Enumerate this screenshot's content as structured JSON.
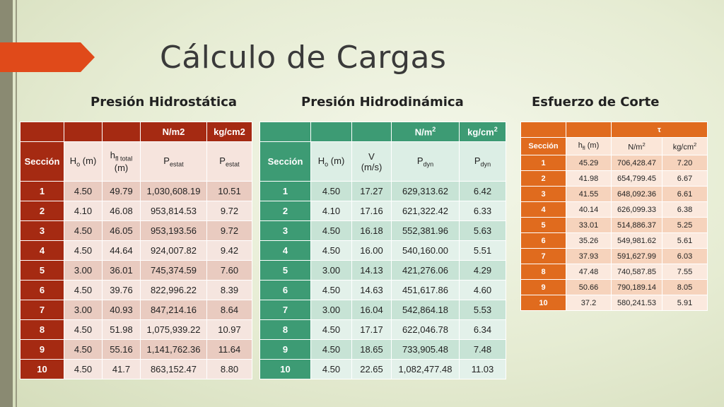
{
  "slide": {
    "title": "Cálculo de Cargas",
    "colors": {
      "red": "#a52a12",
      "green": "#3d9b74",
      "orange": "#e06b1e"
    }
  },
  "hydrostatic": {
    "subtitle": "Presión Hidrostática",
    "unit_n": "N/m2",
    "unit_kg": "kg/cm2",
    "col_seccion": "Sección",
    "col_h_main": "H",
    "col_h_sub": "o",
    "col_h_unit": " (m)",
    "col_hfl_main": "h",
    "col_hfl_sub": "fl total",
    "col_hfl_unit": "(m)",
    "col_p_main": "P",
    "col_p_sub": "estat",
    "rows": [
      [
        "1",
        "4.50",
        "49.79",
        "1,030,608.19",
        "10.51"
      ],
      [
        "2",
        "4.10",
        "46.08",
        "953,814.53",
        "9.72"
      ],
      [
        "3",
        "4.50",
        "46.05",
        "953,193.56",
        "9.72"
      ],
      [
        "4",
        "4.50",
        "44.64",
        "924,007.82",
        "9.42"
      ],
      [
        "5",
        "3.00",
        "36.01",
        "745,374.59",
        "7.60"
      ],
      [
        "6",
        "4.50",
        "39.76",
        "822,996.22",
        "8.39"
      ],
      [
        "7",
        "3.00",
        "40.93",
        "847,214.16",
        "8.64"
      ],
      [
        "8",
        "4.50",
        "51.98",
        "1,075,939.22",
        "10.97"
      ],
      [
        "9",
        "4.50",
        "55.16",
        "1,141,762.36",
        "11.64"
      ],
      [
        "10",
        "4.50",
        "41.7",
        "863,152.47",
        "8.80"
      ]
    ]
  },
  "hydrodynamic": {
    "subtitle": "Presión Hidrodinámica",
    "unit_n": "N/m",
    "unit_kg": "kg/cm",
    "unit_sup": "2",
    "col_seccion": "Sección",
    "col_h_main": "H",
    "col_h_sub": "o",
    "col_h_unit": " (m)",
    "col_v_main": "V",
    "col_v_unit": "(m/s)",
    "col_p_main": "P",
    "col_p_sub": "dyn",
    "rows": [
      [
        "1",
        "4.50",
        "17.27",
        "629,313.62",
        "6.42"
      ],
      [
        "2",
        "4.10",
        "17.16",
        "621,322.42",
        "6.33"
      ],
      [
        "3",
        "4.50",
        "16.18",
        "552,381.96",
        "5.63"
      ],
      [
        "4",
        "4.50",
        "16.00",
        "540,160.00",
        "5.51"
      ],
      [
        "5",
        "3.00",
        "14.13",
        "421,276.06",
        "4.29"
      ],
      [
        "6",
        "4.50",
        "14.63",
        "451,617.86",
        "4.60"
      ],
      [
        "7",
        "3.00",
        "16.04",
        "542,864.18",
        "5.53"
      ],
      [
        "8",
        "4.50",
        "17.17",
        "622,046.78",
        "6.34"
      ],
      [
        "9",
        "4.50",
        "18.65",
        "733,905.48",
        "7.48"
      ],
      [
        "10",
        "4.50",
        "22.65",
        "1,082,477.48",
        "11.03"
      ]
    ]
  },
  "shear": {
    "subtitle": "Esfuerzo de Corte",
    "tau": "τ",
    "col_seccion": "Sección",
    "col_hfl_main": "h",
    "col_hfl_sub": "fl",
    "col_hfl_unit": " (m)",
    "unit_n": "N/m",
    "unit_kg": "kg/cm",
    "unit_sup": "2",
    "rows": [
      [
        "1",
        "45.29",
        "706,428.47",
        "7.20"
      ],
      [
        "2",
        "41.98",
        "654,799.45",
        "6.67"
      ],
      [
        "3",
        "41.55",
        "648,092.36",
        "6.61"
      ],
      [
        "4",
        "40.14",
        "626,099.33",
        "6.38"
      ],
      [
        "5",
        "33.01",
        "514,886.37",
        "5.25"
      ],
      [
        "6",
        "35.26",
        "549,981.62",
        "5.61"
      ],
      [
        "7",
        "37.93",
        "591,627.99",
        "6.03"
      ],
      [
        "8",
        "47.48",
        "740,587.85",
        "7.55"
      ],
      [
        "9",
        "50.66",
        "790,189.14",
        "8.05"
      ],
      [
        "10",
        "37.2",
        "580,241.53",
        "5.91"
      ]
    ]
  }
}
